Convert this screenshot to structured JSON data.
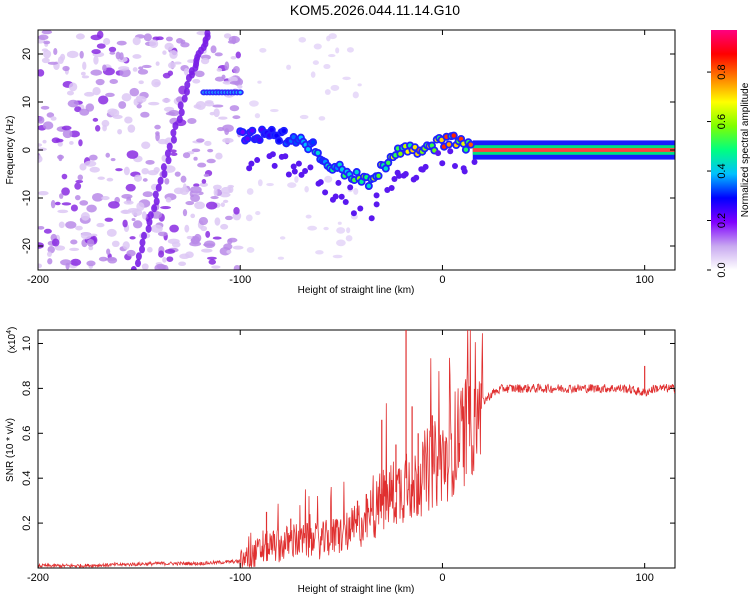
{
  "title": "KOM5.2026.044.11.14.G10",
  "chart_data": [
    {
      "type": "heatmap",
      "title": "KOM5.2026.044.11.14.G10",
      "xlabel": "Height of straight line (km)",
      "ylabel": "Frequency (Hz)",
      "xlim": [
        -200,
        115
      ],
      "ylim": [
        -25,
        25
      ],
      "xticks": [
        -200,
        -100,
        0,
        100
      ],
      "xtick_labels": [
        "-200",
        "-100",
        "0",
        "100"
      ],
      "yticks": [
        20,
        10,
        0,
        -10,
        -20
      ],
      "ytick_labels": [
        "20",
        "10",
        "0",
        "-10",
        "-20"
      ],
      "colorbar": {
        "label": "Normalized spectral amplitude",
        "range": [
          0.0,
          0.97
        ],
        "ticks": [
          0.0,
          0.2,
          0.4,
          0.6,
          0.8
        ],
        "tick_labels": [
          "0.0",
          "0.2",
          "0.4",
          "0.6",
          "0.8"
        ],
        "colormap": [
          "#ffffff",
          "#c8a8f0",
          "#8000ff",
          "#0000ff",
          "#00c0ff",
          "#00ff80",
          "#80ff00",
          "#ffff00",
          "#ff8000",
          "#ff0000",
          "#ff0080"
        ]
      },
      "features": [
        {
          "name": "scattered noise",
          "x_range": [
            -200,
            -100
          ],
          "y_range": [
            -25,
            25
          ],
          "amplitude": 0.1
        },
        {
          "name": "diagonal streak",
          "points": [
            [
              -152,
              -25
            ],
            [
              -138,
              -5
            ],
            [
              -125,
              15
            ],
            [
              -115,
              25
            ]
          ],
          "amplitude": 0.1
        },
        {
          "name": "main line",
          "points": [
            [
              -100,
              3
            ],
            [
              -80,
              3
            ],
            [
              -65,
              1
            ],
            [
              -55,
              -3
            ],
            [
              -45,
              -5
            ],
            [
              -35,
              -7
            ],
            [
              -25,
              -1
            ],
            [
              -15,
              0
            ],
            [
              -5,
              1
            ],
            [
              5,
              2
            ],
            [
              15,
              0
            ],
            [
              40,
              0
            ],
            [
              80,
              0
            ],
            [
              115,
              0
            ]
          ],
          "amplitude_range": [
            0.2,
            0.97
          ]
        },
        {
          "name": "upper tone",
          "x_range": [
            -118,
            -100
          ],
          "y": 12,
          "amplitude": 0.2
        }
      ]
    },
    {
      "type": "line",
      "xlabel": "Height of straight line (km)",
      "ylabel": "SNR (10 * v/v)",
      "y_multiplier": "(x10^4)",
      "xlim": [
        -200,
        115
      ],
      "ylim": [
        0,
        1.06
      ],
      "xticks": [
        -200,
        -100,
        0,
        100
      ],
      "xtick_labels": [
        "-200",
        "-100",
        "0",
        "100"
      ],
      "yticks": [
        0.2,
        0.4,
        0.6,
        0.8,
        1.0
      ],
      "ytick_labels": [
        "0.2",
        "0.4",
        "0.6",
        "0.8",
        "1.0"
      ],
      "series": [
        {
          "name": "SNR",
          "color": "#e03030",
          "x": [
            -200,
            -180,
            -160,
            -140,
            -120,
            -110,
            -100,
            -95,
            -90,
            -85,
            -80,
            -75,
            -70,
            -65,
            -60,
            -55,
            -50,
            -45,
            -40,
            -35,
            -30,
            -25,
            -20,
            -18,
            -15,
            -10,
            -5,
            0,
            5,
            10,
            15,
            20,
            25,
            30,
            40,
            50,
            60,
            70,
            80,
            90,
            95,
            100,
            105,
            110,
            115
          ],
          "values": [
            0.01,
            0.01,
            0.015,
            0.02,
            0.02,
            0.025,
            0.03,
            0.05,
            0.08,
            0.1,
            0.1,
            0.12,
            0.12,
            0.12,
            0.12,
            0.14,
            0.15,
            0.17,
            0.2,
            0.24,
            0.3,
            0.33,
            0.35,
            0.4,
            0.35,
            0.42,
            0.45,
            0.48,
            0.55,
            0.6,
            0.68,
            0.74,
            0.78,
            0.8,
            0.8,
            0.8,
            0.8,
            0.8,
            0.8,
            0.8,
            0.79,
            0.78,
            0.8,
            0.8,
            0.8
          ]
        }
      ],
      "spikes": [
        {
          "x": -87,
          "y": 0.25
        },
        {
          "x": -75,
          "y": 0.22
        },
        {
          "x": -42,
          "y": 0.3
        },
        {
          "x": -30,
          "y": 0.66
        },
        {
          "x": -23,
          "y": 0.55
        },
        {
          "x": -18,
          "y": 1.06
        },
        {
          "x": -15,
          "y": 0.72
        },
        {
          "x": -12,
          "y": 0.6
        },
        {
          "x": -5,
          "y": 0.68
        },
        {
          "x": 100,
          "y": 0.9
        }
      ]
    }
  ]
}
